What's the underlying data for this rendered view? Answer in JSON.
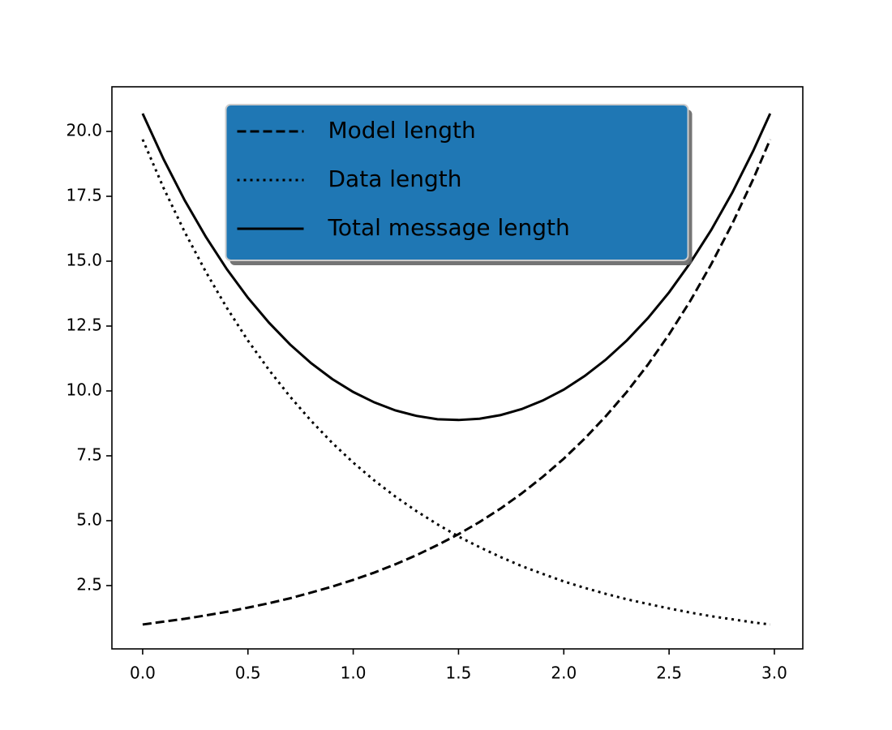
{
  "chart_data": {
    "type": "line",
    "x": [
      0,
      0.1,
      0.2,
      0.3,
      0.4,
      0.5,
      0.6,
      0.7,
      0.8,
      0.9,
      1.0,
      1.1,
      1.2,
      1.3,
      1.4,
      1.5,
      1.6,
      1.7,
      1.8,
      1.9,
      2.0,
      2.1,
      2.2,
      2.3,
      2.4,
      2.5,
      2.6,
      2.7,
      2.8,
      2.9,
      2.98
    ],
    "series": [
      {
        "name": "Model length",
        "color": "#000000",
        "linestyle": "dashed",
        "values": [
          1.0,
          1.11,
          1.22,
          1.35,
          1.49,
          1.65,
          1.82,
          2.01,
          2.23,
          2.46,
          2.72,
          3.0,
          3.32,
          3.67,
          4.06,
          4.48,
          4.95,
          5.47,
          6.05,
          6.69,
          7.39,
          8.17,
          9.03,
          9.97,
          11.02,
          12.18,
          13.46,
          14.88,
          16.44,
          18.17,
          19.69
        ]
      },
      {
        "name": "Data length",
        "color": "#000000",
        "linestyle": "dotted",
        "values": [
          19.69,
          17.81,
          16.12,
          14.59,
          13.2,
          11.94,
          10.81,
          9.78,
          8.85,
          8.0,
          7.24,
          6.55,
          5.93,
          5.37,
          4.86,
          4.39,
          3.98,
          3.6,
          3.25,
          2.95,
          2.66,
          2.41,
          2.18,
          1.97,
          1.79,
          1.62,
          1.46,
          1.32,
          1.2,
          1.08,
          1.0
        ]
      },
      {
        "name": "Total message length",
        "color": "#000000",
        "linestyle": "solid",
        "values": [
          20.69,
          18.92,
          17.34,
          15.94,
          14.69,
          13.59,
          12.63,
          11.79,
          11.07,
          10.46,
          9.96,
          9.56,
          9.25,
          9.04,
          8.91,
          8.88,
          8.93,
          9.07,
          9.3,
          9.63,
          10.05,
          10.58,
          11.21,
          11.95,
          12.81,
          13.8,
          14.93,
          16.2,
          17.64,
          19.26,
          20.69
        ]
      }
    ],
    "xlim": [
      -0.146,
      3.135
    ],
    "ylim": [
      0.06,
      21.72
    ],
    "xticks": [
      {
        "value": 0,
        "label": "0.0"
      },
      {
        "value": 0.5,
        "label": "0.5"
      },
      {
        "value": 1,
        "label": "1.0"
      },
      {
        "value": 1.5,
        "label": "1.5"
      },
      {
        "value": 2,
        "label": "2.0"
      },
      {
        "value": 2.5,
        "label": "2.5"
      },
      {
        "value": 3,
        "label": "3.0"
      }
    ],
    "yticks": [
      {
        "value": 2.5,
        "label": "2.5"
      },
      {
        "value": 5,
        "label": "5.0"
      },
      {
        "value": 7.5,
        "label": "7.5"
      },
      {
        "value": 10,
        "label": "10.0"
      },
      {
        "value": 12.5,
        "label": "12.5"
      },
      {
        "value": 15,
        "label": "15.0"
      },
      {
        "value": 17.5,
        "label": "17.5"
      },
      {
        "value": 20,
        "label": "20.0"
      }
    ],
    "grid": false,
    "legend": "upper center",
    "legend_color": "#1f77b4"
  }
}
